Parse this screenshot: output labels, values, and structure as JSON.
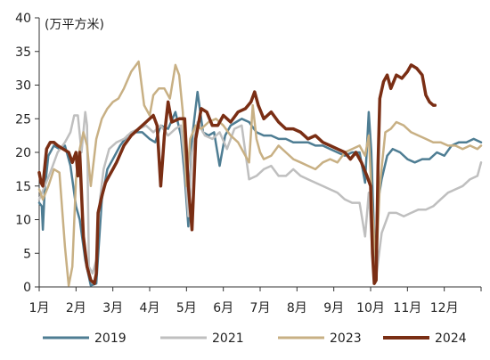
{
  "chart_data": {
    "type": "line",
    "unit_label": "(万平方米)",
    "x_ticks": [
      "1月",
      "2月",
      "3月",
      "4月",
      "5月",
      "6月",
      "7月",
      "8月",
      "9月",
      "10月",
      "11月",
      "12月"
    ],
    "xlim": [
      1,
      13
    ],
    "ylim": [
      0,
      40
    ],
    "y_ticks": [
      "0",
      "5",
      "10",
      "15",
      "20",
      "25",
      "30",
      "35",
      "40"
    ],
    "grid": false,
    "legend_position": "bottom",
    "series": [
      {
        "name": "2019",
        "color": "#4e7d93",
        "x": [
          1.0,
          1.07,
          1.1,
          1.15,
          1.25,
          1.4,
          1.55,
          1.7,
          1.85,
          2.0,
          2.1,
          2.25,
          2.4,
          2.55,
          2.7,
          2.85,
          3.0,
          3.2,
          3.4,
          3.6,
          3.8,
          4.0,
          4.15,
          4.3,
          4.5,
          4.7,
          4.85,
          4.95,
          5.05,
          5.15,
          5.3,
          5.45,
          5.6,
          5.75,
          5.9,
          6.05,
          6.2,
          6.35,
          6.5,
          6.7,
          6.9,
          7.1,
          7.3,
          7.5,
          7.7,
          7.9,
          8.1,
          8.3,
          8.5,
          8.7,
          8.9,
          9.1,
          9.3,
          9.5,
          9.7,
          9.85,
          9.95,
          10.02,
          10.08,
          10.12,
          10.18,
          10.3,
          10.45,
          10.6,
          10.8,
          11.0,
          11.2,
          11.4,
          11.6,
          11.8,
          12.0,
          12.2,
          12.4,
          12.6,
          12.8,
          13.0
        ],
        "y": [
          12.5,
          12.0,
          8.5,
          14.5,
          19.5,
          21.0,
          20.5,
          21.0,
          18.0,
          12.0,
          10.0,
          4.0,
          0.2,
          0.5,
          13.0,
          17.5,
          19.0,
          21.0,
          22.5,
          23.0,
          23.0,
          22.0,
          21.5,
          24.0,
          23.5,
          26.0,
          22.5,
          16.5,
          9.0,
          22.0,
          29.0,
          23.0,
          22.5,
          23.0,
          18.0,
          22.5,
          24.0,
          24.5,
          25.0,
          24.5,
          23.0,
          22.5,
          22.5,
          22.0,
          22.0,
          21.5,
          21.5,
          21.5,
          21.0,
          21.0,
          20.5,
          20.0,
          19.5,
          20.0,
          20.0,
          15.5,
          26.0,
          20.0,
          10.0,
          2.0,
          12.0,
          16.0,
          19.5,
          20.5,
          20.0,
          19.0,
          18.5,
          19.0,
          19.0,
          20.0,
          19.5,
          21.0,
          21.5,
          21.5,
          22.0,
          21.5
        ]
      },
      {
        "name": "2021",
        "color": "#bfbfbf",
        "x": [
          1.0,
          1.15,
          1.3,
          1.5,
          1.7,
          1.85,
          1.95,
          2.05,
          2.15,
          2.25,
          2.3,
          2.35,
          2.45,
          2.55,
          2.65,
          2.75,
          2.9,
          3.1,
          3.3,
          3.5,
          3.7,
          3.9,
          4.1,
          4.3,
          4.5,
          4.7,
          4.85,
          4.95,
          5.05,
          5.15,
          5.3,
          5.5,
          5.7,
          5.9,
          6.1,
          6.3,
          6.5,
          6.7,
          6.9,
          7.1,
          7.3,
          7.5,
          7.7,
          7.9,
          8.1,
          8.3,
          8.5,
          8.7,
          8.9,
          9.1,
          9.3,
          9.5,
          9.7,
          9.85,
          9.95,
          10.05,
          10.15,
          10.3,
          10.5,
          10.7,
          10.9,
          11.1,
          11.3,
          11.5,
          11.7,
          11.9,
          12.1,
          12.3,
          12.5,
          12.7,
          12.9,
          13.0
        ],
        "y": [
          13.0,
          15.0,
          17.0,
          20.0,
          21.5,
          23.0,
          25.5,
          25.5,
          20.0,
          26.0,
          24.0,
          3.0,
          2.0,
          4.0,
          13.0,
          17.5,
          20.5,
          21.5,
          22.0,
          23.0,
          23.5,
          24.0,
          23.0,
          24.0,
          22.5,
          23.5,
          24.0,
          18.5,
          10.5,
          20.0,
          24.5,
          22.5,
          22.0,
          23.0,
          20.5,
          23.5,
          24.0,
          16.0,
          16.5,
          17.5,
          18.0,
          16.5,
          16.5,
          17.5,
          16.5,
          16.0,
          15.5,
          15.0,
          14.5,
          14.0,
          13.0,
          12.5,
          12.5,
          7.5,
          14.0,
          5.0,
          1.5,
          8.0,
          11.0,
          11.0,
          10.5,
          11.0,
          11.5,
          11.5,
          12.0,
          13.0,
          14.0,
          14.5,
          15.0,
          16.0,
          16.5,
          18.5
        ]
      },
      {
        "name": "2023",
        "color": "#c8b084",
        "x": [
          1.0,
          1.1,
          1.25,
          1.4,
          1.55,
          1.7,
          1.8,
          1.9,
          2.0,
          2.1,
          2.2,
          2.3,
          2.4,
          2.55,
          2.7,
          2.85,
          3.0,
          3.15,
          3.3,
          3.5,
          3.7,
          3.85,
          4.0,
          4.1,
          4.25,
          4.4,
          4.55,
          4.7,
          4.8,
          4.9,
          5.0,
          5.1,
          5.25,
          5.4,
          5.6,
          5.8,
          6.0,
          6.2,
          6.4,
          6.55,
          6.7,
          6.8,
          6.9,
          7.0,
          7.1,
          7.3,
          7.5,
          7.7,
          7.9,
          8.1,
          8.3,
          8.5,
          8.7,
          8.9,
          9.1,
          9.3,
          9.5,
          9.7,
          9.85,
          9.95,
          10.05,
          10.15,
          10.25,
          10.4,
          10.55,
          10.7,
          10.9,
          11.1,
          11.3,
          11.5,
          11.7,
          11.9,
          12.1,
          12.3,
          12.5,
          12.7,
          12.9,
          13.0
        ],
        "y": [
          14.5,
          13.0,
          15.0,
          17.5,
          17.0,
          6.0,
          0.2,
          3.0,
          16.0,
          20.5,
          23.0,
          21.0,
          15.0,
          22.0,
          25.0,
          26.5,
          27.5,
          28.0,
          29.5,
          32.0,
          33.5,
          27.0,
          25.5,
          28.5,
          29.5,
          29.5,
          28.0,
          33.0,
          31.5,
          26.0,
          15.0,
          22.0,
          24.0,
          23.5,
          24.5,
          25.0,
          24.0,
          22.5,
          21.5,
          20.0,
          18.5,
          27.0,
          22.0,
          20.0,
          19.0,
          19.5,
          21.0,
          20.0,
          19.0,
          18.5,
          18.0,
          17.5,
          18.5,
          19.0,
          18.5,
          20.0,
          20.5,
          21.0,
          19.5,
          22.5,
          11.0,
          3.0,
          15.0,
          23.0,
          23.5,
          24.5,
          24.0,
          23.0,
          22.5,
          22.0,
          21.5,
          21.5,
          21.0,
          21.0,
          20.5,
          21.0,
          20.5,
          21.0
        ]
      },
      {
        "name": "2024",
        "color": "#7a2e14",
        "x": [
          1.0,
          1.05,
          1.1,
          1.2,
          1.3,
          1.4,
          1.5,
          1.65,
          1.8,
          1.9,
          2.0,
          2.05,
          2.1,
          2.2,
          2.3,
          2.4,
          2.5,
          2.55,
          2.6,
          2.7,
          2.8,
          2.9,
          3.0,
          3.1,
          3.3,
          3.5,
          3.7,
          3.9,
          4.1,
          4.2,
          4.3,
          4.4,
          4.5,
          4.6,
          4.8,
          4.95,
          5.05,
          5.15,
          5.25,
          5.4,
          5.55,
          5.7,
          5.85,
          6.0,
          6.2,
          6.4,
          6.6,
          6.75,
          6.85,
          6.95,
          7.1,
          7.3,
          7.5,
          7.7,
          7.9,
          8.1,
          8.3,
          8.5,
          8.7,
          8.9,
          9.1,
          9.3,
          9.45,
          9.6,
          9.75,
          9.9,
          10.0,
          10.05,
          10.1,
          10.15,
          10.2,
          10.25,
          10.35,
          10.45,
          10.55,
          10.7,
          10.85,
          11.0,
          11.1,
          11.25,
          11.4,
          11.5,
          11.6,
          11.7,
          11.75
        ],
        "y": [
          17.0,
          15.5,
          15.0,
          20.5,
          21.5,
          21.5,
          21.0,
          20.5,
          20.0,
          18.5,
          20.0,
          16.5,
          20.0,
          7.5,
          3.0,
          1.0,
          0.5,
          2.0,
          11.0,
          13.5,
          15.5,
          16.5,
          17.5,
          18.5,
          21.0,
          22.5,
          23.5,
          24.5,
          25.5,
          24.0,
          15.0,
          22.5,
          27.5,
          24.5,
          25.0,
          25.0,
          15.0,
          8.5,
          22.0,
          26.5,
          26.0,
          24.0,
          24.0,
          25.5,
          24.5,
          26.0,
          26.5,
          27.5,
          29.0,
          27.0,
          25.0,
          26.0,
          24.5,
          23.5,
          23.5,
          23.0,
          22.0,
          22.5,
          21.5,
          21.0,
          20.5,
          20.0,
          19.0,
          20.0,
          18.5,
          16.5,
          15.0,
          5.0,
          0.5,
          1.0,
          18.0,
          28.0,
          30.5,
          31.5,
          29.5,
          31.5,
          31.0,
          32.0,
          33.0,
          32.5,
          31.5,
          28.5,
          27.5,
          27.0,
          27.0
        ]
      }
    ]
  }
}
